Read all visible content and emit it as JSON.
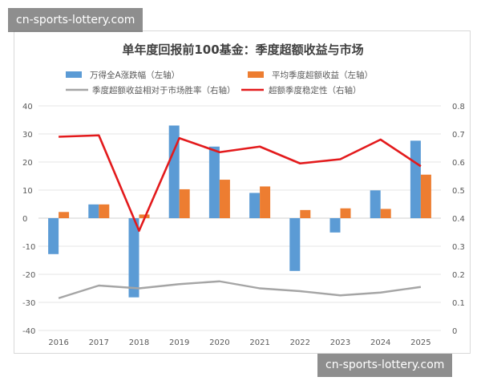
{
  "watermark_top": "cn-sports-lottery.com",
  "watermark_bottom": "cn-sports-lottery.com",
  "colors": {
    "bar1": "#5b9bd5",
    "bar2": "#ed7d31",
    "line_gray": "#a5a5a5",
    "line_red": "#e31a1c",
    "grid": "#e6e6e6"
  },
  "chart_data": {
    "type": "bar",
    "title": "单年度回报前100基金：季度超额收益与市场",
    "categories": [
      "2016",
      "2017",
      "2018",
      "2019",
      "2020",
      "2021",
      "2022",
      "2023",
      "2024",
      "2025"
    ],
    "y_left": {
      "range": [
        -40,
        40
      ],
      "ticks": [
        "40",
        "30",
        "20",
        "10",
        "0",
        "-10",
        "-20",
        "-30",
        "-40"
      ]
    },
    "y_right": {
      "range": [
        0,
        0.8
      ],
      "ticks": [
        "0.8",
        "0.7",
        "0.6",
        "0.5",
        "0.4",
        "0.3",
        "0.2",
        "0.1",
        "0"
      ]
    },
    "series": [
      {
        "name": "万得全A涨跌幅（左轴）",
        "type": "bar",
        "axis": "left",
        "color": "#5b9bd5",
        "values": [
          -12.8,
          4.9,
          -28.2,
          33.0,
          25.5,
          9.0,
          -18.8,
          -5.1,
          9.9,
          27.6
        ]
      },
      {
        "name": "平均季度超额收益（左轴）",
        "type": "bar",
        "axis": "left",
        "color": "#ed7d31",
        "values": [
          2.2,
          4.9,
          1.3,
          10.3,
          13.7,
          11.3,
          2.9,
          3.5,
          3.3,
          15.5
        ]
      },
      {
        "name": "季度超额收益相对于市场胜率（右轴）",
        "type": "line",
        "axis": "right",
        "color": "#a5a5a5",
        "values": [
          0.115,
          0.16,
          0.15,
          0.165,
          0.175,
          0.15,
          0.14,
          0.125,
          0.135,
          0.155
        ]
      },
      {
        "name": "超额季度稳定性（右轴）",
        "type": "line",
        "axis": "right",
        "color": "#e31a1c",
        "values": [
          0.69,
          0.695,
          0.355,
          0.685,
          0.635,
          0.655,
          0.595,
          0.61,
          0.68,
          0.585
        ]
      }
    ],
    "legend": "top"
  }
}
